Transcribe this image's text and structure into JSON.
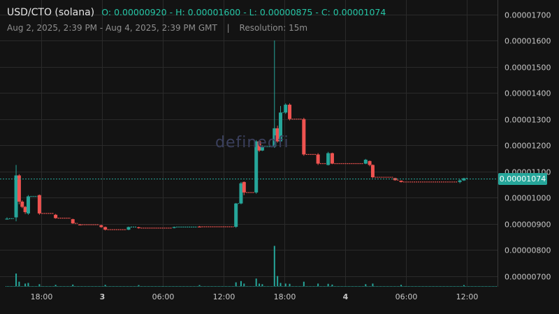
{
  "header": {
    "symbol": "USD/CTO (solana)",
    "ohlc": "O: 0.00000920 - H: 0.00001600 - L: 0.00000875 - C: 0.00001074",
    "range": "Aug 2, 2025, 2:39 PM - Aug 4, 2025, 2:39 PM GMT",
    "separator": "|",
    "resolution": "Resolution: 15m"
  },
  "watermark": "definedfi",
  "colors": {
    "up": "#26a69a",
    "down": "#ef5350",
    "bg": "#131313",
    "grid": "#2a2a2a"
  },
  "chart_data": {
    "type": "candlestick",
    "y_ticks": [
      "0.00001700",
      "0.00001600",
      "0.00001500",
      "0.00001400",
      "0.00001300",
      "0.00001200",
      "0.00001100",
      "0.00001000",
      "0.00000900",
      "0.00000800",
      "0.00000700"
    ],
    "ylim": [
      6.6e-06,
      1.75e-05
    ],
    "x_ticks": [
      {
        "label": "18:00",
        "t": 3.35,
        "bold": false
      },
      {
        "label": "3",
        "t": 9.35,
        "bold": true
      },
      {
        "label": "06:00",
        "t": 15.35,
        "bold": false
      },
      {
        "label": "12:00",
        "t": 21.35,
        "bold": false
      },
      {
        "label": "18:00",
        "t": 27.35,
        "bold": false
      },
      {
        "label": "4",
        "t": 33.35,
        "bold": true
      },
      {
        "label": "06:00",
        "t": 39.35,
        "bold": false
      },
      {
        "label": "12:00",
        "t": 45.35,
        "bold": false
      }
    ],
    "last_price": "0.00001074",
    "candles": [
      [
        0.0,
        9.2e-06,
        9.25e-06,
        9.18e-06,
        9.2e-06
      ],
      [
        0.9,
        9.25e-06,
        1.125e-05,
        9.1e-06,
        1.085e-05
      ],
      [
        1.2,
        1.085e-05,
        1.09e-05,
        9.75e-06,
        9.85e-06
      ],
      [
        1.5,
        9.85e-06,
        9.9e-06,
        9.6e-06,
        9.65e-06
      ],
      [
        1.8,
        9.65e-06,
        9.68e-06,
        9.38e-06,
        9.45e-06
      ],
      [
        2.1,
        9.4e-06,
        1.01e-05,
        9.35e-06,
        1.005e-05
      ],
      [
        3.2,
        1.01e-05,
        1.012e-05,
        9.35e-06,
        9.4e-06
      ],
      [
        4.8,
        9.35e-06,
        9.38e-06,
        9.2e-06,
        9.22e-06
      ],
      [
        6.5,
        9.18e-06,
        9.2e-06,
        9e-06,
        9.02e-06
      ],
      [
        7.2,
        8.98e-06,
        9e-06,
        8.95e-06,
        8.97e-06
      ],
      [
        9.3,
        8.95e-06,
        8.97e-06,
        8.85e-06,
        8.88e-06
      ],
      [
        9.7,
        8.88e-06,
        8.9e-06,
        8.75e-06,
        8.78e-06
      ],
      [
        12.0,
        8.78e-06,
        8.9e-06,
        8.76e-06,
        8.88e-06
      ],
      [
        13.0,
        8.87e-06,
        8.89e-06,
        8.82e-06,
        8.84e-06
      ],
      [
        16.5,
        8.85e-06,
        8.9e-06,
        8.83e-06,
        8.88e-06
      ],
      [
        19.0,
        8.9e-06,
        8.92e-06,
        8.87e-06,
        8.89e-06
      ],
      [
        22.6,
        8.89e-06,
        9.8e-06,
        8.85e-06,
        9.78e-06
      ],
      [
        23.1,
        9.78e-06,
        1.06e-05,
        9.75e-06,
        1.055e-05
      ],
      [
        23.4,
        1.06e-05,
        1.062e-05,
        1.01e-05,
        1.02e-05
      ],
      [
        24.6,
        1.02e-05,
        1.22e-05,
        1.015e-05,
        1.215e-05
      ],
      [
        24.9,
        1.215e-05,
        1.22e-05,
        1.175e-05,
        1.18e-05
      ],
      [
        25.2,
        1.18e-05,
        1.2e-05,
        1.178e-05,
        1.195e-05
      ],
      [
        26.4,
        1.195e-05,
        1.6e-05,
        1.19e-05,
        1.265e-05
      ],
      [
        26.7,
        1.265e-05,
        1.275e-05,
        1.21e-05,
        1.215e-05
      ],
      [
        27.0,
        1.215e-05,
        1.35e-05,
        1.21e-05,
        1.325e-05
      ],
      [
        27.5,
        1.325e-05,
        1.36e-05,
        1.32e-05,
        1.355e-05
      ],
      [
        27.9,
        1.355e-05,
        1.36e-05,
        1.295e-05,
        1.3e-05
      ],
      [
        29.3,
        1.3e-05,
        1.305e-05,
        1.16e-05,
        1.165e-05
      ],
      [
        30.7,
        1.165e-05,
        1.17e-05,
        1.125e-05,
        1.13e-05
      ],
      [
        31.7,
        1.125e-05,
        1.175e-05,
        1.123e-05,
        1.17e-05
      ],
      [
        32.1,
        1.17e-05,
        1.172e-05,
        1.128e-05,
        1.13e-05
      ],
      [
        35.4,
        1.13e-05,
        1.148e-05,
        1.128e-05,
        1.145e-05
      ],
      [
        35.8,
        1.14e-05,
        1.142e-05,
        1.12e-05,
        1.125e-05
      ],
      [
        36.1,
        1.125e-05,
        1.127e-05,
        1.075e-05,
        1.078e-05
      ],
      [
        38.3,
        1.075e-05,
        1.076e-05,
        1.065e-05,
        1.067e-05
      ],
      [
        38.9,
        1.065e-05,
        1.066e-05,
        1.058e-05,
        1.06e-05
      ],
      [
        44.7,
        1.06e-05,
        1.07e-05,
        1.055e-05,
        1.066e-05
      ],
      [
        45.1,
        1.066e-05,
        1.076e-05,
        1.064e-05,
        1.074e-05
      ]
    ],
    "volumes": [
      [
        0.9,
        1.0
      ],
      [
        1.2,
        0.35
      ],
      [
        1.8,
        0.2
      ],
      [
        2.1,
        0.25
      ],
      [
        3.2,
        0.15
      ],
      [
        4.8,
        0.1
      ],
      [
        6.5,
        0.12
      ],
      [
        9.7,
        0.1
      ],
      [
        13.0,
        0.08
      ],
      [
        19.0,
        0.08
      ],
      [
        22.6,
        0.3
      ],
      [
        23.1,
        0.4
      ],
      [
        23.4,
        0.2
      ],
      [
        24.6,
        0.6
      ],
      [
        24.9,
        0.2
      ],
      [
        25.2,
        0.15
      ],
      [
        26.4,
        3.2
      ],
      [
        26.7,
        0.8
      ],
      [
        27.0,
        0.25
      ],
      [
        27.5,
        0.2
      ],
      [
        27.9,
        0.18
      ],
      [
        29.3,
        0.35
      ],
      [
        30.7,
        0.2
      ],
      [
        31.7,
        0.18
      ],
      [
        32.1,
        0.12
      ],
      [
        35.4,
        0.15
      ],
      [
        36.1,
        0.2
      ],
      [
        38.9,
        0.1
      ],
      [
        45.1,
        0.08
      ]
    ]
  }
}
